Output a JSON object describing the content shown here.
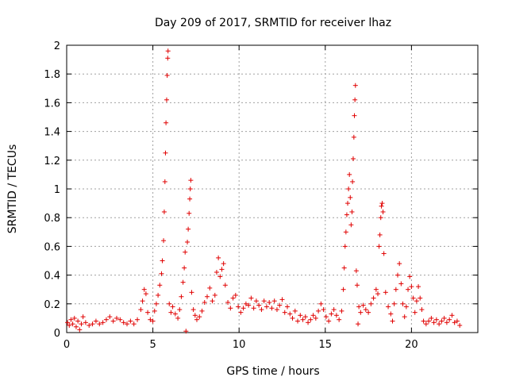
{
  "chart_data": {
    "type": "scatter",
    "title": "Day 209 of 2017, SRMTID for receiver lhaz",
    "xlabel": "GPS time / hours",
    "ylabel": "SRMTID / TECUs",
    "xlim": [
      0,
      23.85
    ],
    "ylim": [
      0,
      2
    ],
    "xticks": [
      0,
      5,
      10,
      15,
      20
    ],
    "xtick_labels": [
      "0",
      "5",
      "10",
      "15",
      "20"
    ],
    "yticks": [
      0,
      0.2,
      0.4,
      0.6,
      0.8,
      1,
      1.2,
      1.4,
      1.6,
      1.8,
      2
    ],
    "ytick_labels": [
      "0",
      "0.2",
      "0.4",
      "0.6",
      "0.8",
      "1",
      "1.2",
      "1.4",
      "1.6",
      "1.8",
      "2"
    ],
    "grid": true,
    "marker": "+",
    "color": "#e00000",
    "series": [
      {
        "name": "SRMTID",
        "points": [
          [
            0.05,
            0.07
          ],
          [
            0.15,
            0.05
          ],
          [
            0.25,
            0.09
          ],
          [
            0.35,
            0.06
          ],
          [
            0.45,
            0.1
          ],
          [
            0.55,
            0.04
          ],
          [
            0.65,
            0.08
          ],
          [
            0.75,
            0.02
          ],
          [
            0.85,
            0.06
          ],
          [
            0.95,
            0.11
          ],
          [
            1.1,
            0.07
          ],
          [
            1.3,
            0.05
          ],
          [
            1.5,
            0.06
          ],
          [
            1.7,
            0.08
          ],
          [
            1.9,
            0.06
          ],
          [
            2.1,
            0.07
          ],
          [
            2.3,
            0.09
          ],
          [
            2.5,
            0.11
          ],
          [
            2.7,
            0.08
          ],
          [
            2.9,
            0.1
          ],
          [
            3.1,
            0.09
          ],
          [
            3.3,
            0.07
          ],
          [
            3.5,
            0.06
          ],
          [
            3.7,
            0.08
          ],
          [
            3.9,
            0.06
          ],
          [
            4.1,
            0.09
          ],
          [
            4.3,
            0.16
          ],
          [
            4.4,
            0.22
          ],
          [
            4.5,
            0.3
          ],
          [
            4.6,
            0.27
          ],
          [
            4.7,
            0.14
          ],
          [
            4.85,
            0.09
          ],
          [
            5.0,
            0.08
          ],
          [
            5.1,
            0.15
          ],
          [
            5.2,
            0.2
          ],
          [
            5.3,
            0.26
          ],
          [
            5.4,
            0.33
          ],
          [
            5.5,
            0.41
          ],
          [
            5.55,
            0.5
          ],
          [
            5.62,
            0.64
          ],
          [
            5.66,
            0.84
          ],
          [
            5.7,
            1.05
          ],
          [
            5.73,
            1.25
          ],
          [
            5.76,
            1.46
          ],
          [
            5.8,
            1.62
          ],
          [
            5.83,
            1.79
          ],
          [
            5.86,
            1.91
          ],
          [
            5.88,
            1.96
          ],
          [
            5.95,
            0.2
          ],
          [
            6.05,
            0.14
          ],
          [
            6.15,
            0.18
          ],
          [
            6.3,
            0.13
          ],
          [
            6.45,
            0.1
          ],
          [
            6.55,
            0.16
          ],
          [
            6.65,
            0.25
          ],
          [
            6.75,
            0.35
          ],
          [
            6.82,
            0.45
          ],
          [
            6.87,
            0.56
          ],
          [
            6.92,
            0.01
          ],
          [
            7.0,
            0.63
          ],
          [
            7.05,
            0.72
          ],
          [
            7.1,
            0.83
          ],
          [
            7.14,
            0.93
          ],
          [
            7.17,
            1.0
          ],
          [
            7.2,
            1.06
          ],
          [
            7.25,
            0.28
          ],
          [
            7.35,
            0.16
          ],
          [
            7.45,
            0.12
          ],
          [
            7.55,
            0.09
          ],
          [
            7.7,
            0.11
          ],
          [
            7.85,
            0.15
          ],
          [
            8.0,
            0.21
          ],
          [
            8.15,
            0.25
          ],
          [
            8.3,
            0.31
          ],
          [
            8.45,
            0.22
          ],
          [
            8.6,
            0.26
          ],
          [
            8.7,
            0.42
          ],
          [
            8.8,
            0.52
          ],
          [
            8.9,
            0.39
          ],
          [
            9.0,
            0.44
          ],
          [
            9.1,
            0.48
          ],
          [
            9.2,
            0.33
          ],
          [
            9.35,
            0.21
          ],
          [
            9.5,
            0.17
          ],
          [
            9.65,
            0.24
          ],
          [
            9.8,
            0.26
          ],
          [
            9.95,
            0.18
          ],
          [
            10.1,
            0.14
          ],
          [
            10.25,
            0.17
          ],
          [
            10.4,
            0.2
          ],
          [
            10.55,
            0.19
          ],
          [
            10.7,
            0.24
          ],
          [
            10.85,
            0.17
          ],
          [
            11.0,
            0.22
          ],
          [
            11.15,
            0.19
          ],
          [
            11.3,
            0.16
          ],
          [
            11.45,
            0.22
          ],
          [
            11.6,
            0.18
          ],
          [
            11.75,
            0.21
          ],
          [
            11.9,
            0.17
          ],
          [
            12.05,
            0.22
          ],
          [
            12.2,
            0.16
          ],
          [
            12.35,
            0.19
          ],
          [
            12.5,
            0.23
          ],
          [
            12.65,
            0.14
          ],
          [
            12.8,
            0.18
          ],
          [
            12.95,
            0.13
          ],
          [
            13.1,
            0.1
          ],
          [
            13.25,
            0.15
          ],
          [
            13.4,
            0.08
          ],
          [
            13.55,
            0.12
          ],
          [
            13.7,
            0.09
          ],
          [
            13.85,
            0.11
          ],
          [
            14.0,
            0.07
          ],
          [
            14.15,
            0.09
          ],
          [
            14.3,
            0.12
          ],
          [
            14.45,
            0.1
          ],
          [
            14.6,
            0.15
          ],
          [
            14.75,
            0.2
          ],
          [
            14.9,
            0.16
          ],
          [
            15.05,
            0.11
          ],
          [
            15.2,
            0.08
          ],
          [
            15.35,
            0.13
          ],
          [
            15.5,
            0.16
          ],
          [
            15.65,
            0.12
          ],
          [
            15.8,
            0.09
          ],
          [
            15.95,
            0.15
          ],
          [
            16.05,
            0.3
          ],
          [
            16.1,
            0.45
          ],
          [
            16.15,
            0.6
          ],
          [
            16.2,
            0.7
          ],
          [
            16.25,
            0.82
          ],
          [
            16.3,
            0.9
          ],
          [
            16.35,
            1.0
          ],
          [
            16.4,
            1.1
          ],
          [
            16.45,
            0.94
          ],
          [
            16.5,
            0.75
          ],
          [
            16.55,
            0.84
          ],
          [
            16.58,
            1.05
          ],
          [
            16.62,
            1.21
          ],
          [
            16.66,
            1.36
          ],
          [
            16.69,
            1.51
          ],
          [
            16.72,
            1.62
          ],
          [
            16.75,
            1.72
          ],
          [
            16.8,
            0.43
          ],
          [
            16.85,
            0.33
          ],
          [
            16.9,
            0.06
          ],
          [
            16.95,
            0.18
          ],
          [
            17.05,
            0.14
          ],
          [
            17.2,
            0.19
          ],
          [
            17.35,
            0.16
          ],
          [
            17.5,
            0.14
          ],
          [
            17.65,
            0.2
          ],
          [
            17.8,
            0.24
          ],
          [
            17.95,
            0.3
          ],
          [
            18.05,
            0.27
          ],
          [
            18.12,
            0.6
          ],
          [
            18.17,
            0.68
          ],
          [
            18.22,
            0.8
          ],
          [
            18.26,
            0.88
          ],
          [
            18.3,
            0.9
          ],
          [
            18.35,
            0.84
          ],
          [
            18.4,
            0.55
          ],
          [
            18.5,
            0.28
          ],
          [
            18.65,
            0.18
          ],
          [
            18.8,
            0.13
          ],
          [
            18.9,
            0.08
          ],
          [
            19.0,
            0.2
          ],
          [
            19.1,
            0.3
          ],
          [
            19.2,
            0.4
          ],
          [
            19.3,
            0.48
          ],
          [
            19.4,
            0.34
          ],
          [
            19.5,
            0.2
          ],
          [
            19.6,
            0.11
          ],
          [
            19.7,
            0.18
          ],
          [
            19.8,
            0.3
          ],
          [
            19.9,
            0.39
          ],
          [
            20.0,
            0.32
          ],
          [
            20.1,
            0.24
          ],
          [
            20.2,
            0.14
          ],
          [
            20.3,
            0.22
          ],
          [
            20.4,
            0.32
          ],
          [
            20.5,
            0.24
          ],
          [
            20.6,
            0.16
          ],
          [
            20.7,
            0.08
          ],
          [
            20.85,
            0.06
          ],
          [
            21.0,
            0.08
          ],
          [
            21.15,
            0.1
          ],
          [
            21.3,
            0.07
          ],
          [
            21.45,
            0.09
          ],
          [
            21.6,
            0.06
          ],
          [
            21.75,
            0.08
          ],
          [
            21.9,
            0.1
          ],
          [
            22.05,
            0.07
          ],
          [
            22.2,
            0.09
          ],
          [
            22.35,
            0.12
          ],
          [
            22.5,
            0.07
          ],
          [
            22.65,
            0.08
          ],
          [
            22.8,
            0.05
          ]
        ]
      }
    ]
  }
}
